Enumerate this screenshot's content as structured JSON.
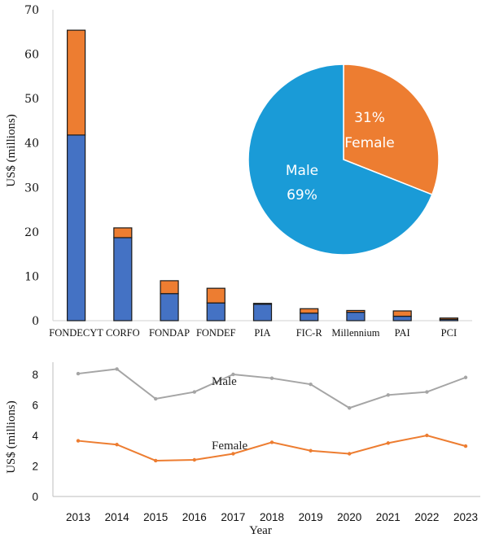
{
  "chart_data": [
    {
      "type": "bar",
      "stacked": true,
      "ylabel": "US$ (millions)",
      "ylim": [
        0,
        70
      ],
      "yticks": [
        0,
        10,
        20,
        30,
        40,
        50,
        60,
        70
      ],
      "categories": [
        "FONDECYT",
        "CORFO",
        "FONDAP",
        "FONDEF",
        "PIA",
        "FIC-R",
        "Millennium",
        "PAI",
        "PCI"
      ],
      "series": [
        {
          "name": "",
          "color": "#4472C4",
          "values": [
            41.8,
            18.7,
            6.1,
            4.0,
            3.7,
            1.7,
            1.9,
            1.0,
            0.3
          ]
        },
        {
          "name": "",
          "color": "#ED7D31",
          "values": [
            23.6,
            2.2,
            2.9,
            3.3,
            0.2,
            1.0,
            0.4,
            1.2,
            0.3
          ]
        }
      ],
      "grid": false
    },
    {
      "type": "pie",
      "slices": [
        {
          "label": "Male",
          "value": 69,
          "text": "69%",
          "color": "#1A9BD7"
        },
        {
          "label": "Female",
          "value": 31,
          "text": "31%",
          "color": "#ED7D31"
        }
      ]
    },
    {
      "type": "line",
      "xlabel": "Year",
      "ylabel": "US$ (millions)",
      "ylim": [
        0,
        8.8
      ],
      "yticks": [
        0,
        2,
        4,
        6,
        8
      ],
      "x": [
        2013,
        2014,
        2015,
        2016,
        2017,
        2018,
        2019,
        2020,
        2021,
        2022,
        2023
      ],
      "series": [
        {
          "name": "Male",
          "color": "#A5A5A5",
          "values": [
            8.05,
            8.35,
            6.4,
            6.85,
            8.0,
            7.75,
            7.35,
            5.8,
            6.65,
            6.85,
            7.8
          ]
        },
        {
          "name": "Female",
          "color": "#ED7D31",
          "values": [
            3.65,
            3.4,
            2.35,
            2.4,
            2.8,
            3.55,
            3.0,
            2.8,
            3.5,
            4.0,
            3.3
          ]
        }
      ],
      "grid": false
    }
  ]
}
